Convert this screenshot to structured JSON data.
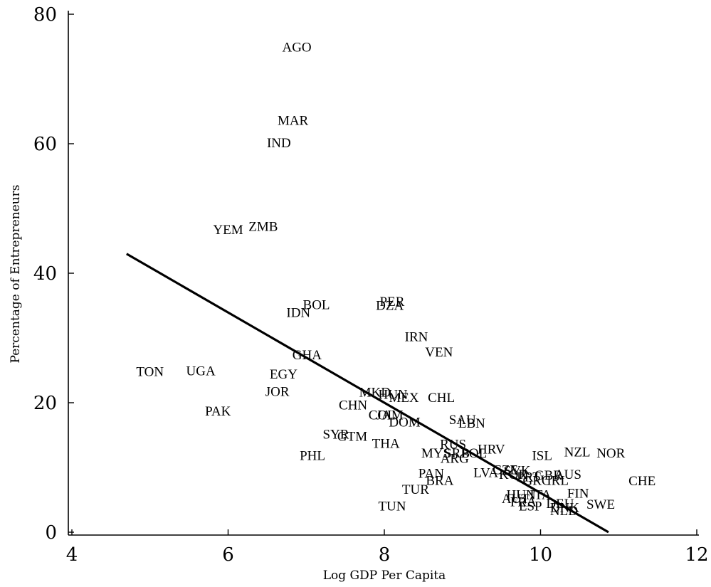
{
  "chart_data": {
    "type": "scatter",
    "title": "",
    "xlabel": "Log GDP Per Capita",
    "ylabel": "Percentage of Entrepreneurs",
    "xlim": [
      4,
      12
    ],
    "ylim": [
      0,
      80
    ],
    "xticks": [
      4,
      6,
      8,
      10,
      12
    ],
    "yticks": [
      0,
      20,
      40,
      60,
      80
    ],
    "grid": false,
    "legend": "none",
    "marker": "country code text labels",
    "fit_line": {
      "x": [
        4.7,
        10.87
      ],
      "y": [
        43.0,
        0.0
      ]
    },
    "points": [
      {
        "label": "AGO",
        "x": 6.88,
        "y": 75.0
      },
      {
        "label": "MAR",
        "x": 6.83,
        "y": 63.7
      },
      {
        "label": "IND",
        "x": 6.65,
        "y": 60.2
      },
      {
        "label": "YEM",
        "x": 6.0,
        "y": 46.8
      },
      {
        "label": "ZMB",
        "x": 6.45,
        "y": 47.3
      },
      {
        "label": "BOL",
        "x": 7.13,
        "y": 35.2
      },
      {
        "label": "IDN",
        "x": 6.9,
        "y": 34.0
      },
      {
        "label": "PER",
        "x": 8.1,
        "y": 35.7
      },
      {
        "label": "DZA",
        "x": 8.07,
        "y": 35.1
      },
      {
        "label": "IRN",
        "x": 8.41,
        "y": 30.3
      },
      {
        "label": "VEN",
        "x": 8.7,
        "y": 27.9
      },
      {
        "label": "GHA",
        "x": 7.01,
        "y": 27.5
      },
      {
        "label": "TON",
        "x": 5.0,
        "y": 24.9
      },
      {
        "label": "UGA",
        "x": 5.65,
        "y": 25.0
      },
      {
        "label": "EGY",
        "x": 6.71,
        "y": 24.5
      },
      {
        "label": "JOR",
        "x": 6.63,
        "y": 21.8
      },
      {
        "label": "PAK",
        "x": 5.87,
        "y": 18.8
      },
      {
        "label": "MKD",
        "x": 7.88,
        "y": 21.7
      },
      {
        "label": "HUN",
        "x": 8.11,
        "y": 21.4
      },
      {
        "label": "MEX",
        "x": 8.25,
        "y": 20.9
      },
      {
        "label": "CHL",
        "x": 8.73,
        "y": 20.9
      },
      {
        "label": "CHN",
        "x": 7.6,
        "y": 19.7
      },
      {
        "label": "COL",
        "x": 7.97,
        "y": 18.2
      },
      {
        "label": "JAM",
        "x": 8.07,
        "y": 18.2
      },
      {
        "label": "DOM",
        "x": 8.26,
        "y": 17.1
      },
      {
        "label": "SAU",
        "x": 9.0,
        "y": 17.5
      },
      {
        "label": "LBN",
        "x": 9.12,
        "y": 16.9
      },
      {
        "label": "SYR",
        "x": 7.38,
        "y": 15.2
      },
      {
        "label": "GTM",
        "x": 7.59,
        "y": 14.9
      },
      {
        "label": "THA",
        "x": 8.02,
        "y": 13.8
      },
      {
        "label": "RUS",
        "x": 8.88,
        "y": 13.7
      },
      {
        "label": "HRV",
        "x": 9.37,
        "y": 12.9
      },
      {
        "label": "MYS",
        "x": 8.66,
        "y": 12.3
      },
      {
        "label": "SRB",
        "x": 8.93,
        "y": 12.3
      },
      {
        "label": "POL",
        "x": 9.15,
        "y": 12.3
      },
      {
        "label": "ARG",
        "x": 8.9,
        "y": 11.5
      },
      {
        "label": "ISL",
        "x": 10.02,
        "y": 11.9
      },
      {
        "label": "NZL",
        "x": 10.47,
        "y": 12.5
      },
      {
        "label": "NOR",
        "x": 10.9,
        "y": 12.3
      },
      {
        "label": "PHL",
        "x": 7.08,
        "y": 11.9
      },
      {
        "label": "PAN",
        "x": 8.6,
        "y": 9.2
      },
      {
        "label": "LVA",
        "x": 9.3,
        "y": 9.3
      },
      {
        "label": "CZE",
        "x": 9.55,
        "y": 9.7
      },
      {
        "label": "SVK",
        "x": 9.7,
        "y": 9.6
      },
      {
        "label": "KOR",
        "x": 9.65,
        "y": 9.0
      },
      {
        "label": "PRT",
        "x": 9.85,
        "y": 8.6
      },
      {
        "label": "GBR",
        "x": 10.1,
        "y": 8.9
      },
      {
        "label": "AUS",
        "x": 10.35,
        "y": 9.0
      },
      {
        "label": "BRA",
        "x": 8.71,
        "y": 8.1
      },
      {
        "label": "GRC",
        "x": 9.95,
        "y": 8.1
      },
      {
        "label": "IRL",
        "x": 10.22,
        "y": 8.1
      },
      {
        "label": "CHE",
        "x": 11.3,
        "y": 8.0
      },
      {
        "label": "TUR",
        "x": 8.4,
        "y": 6.7
      },
      {
        "label": "FIN",
        "x": 10.48,
        "y": 6.1
      },
      {
        "label": "HUN",
        "x": 9.75,
        "y": 5.9
      },
      {
        "label": "ITA",
        "x": 10.0,
        "y": 5.9
      },
      {
        "label": "AUT",
        "x": 9.68,
        "y": 5.3
      },
      {
        "label": "FRA",
        "x": 9.78,
        "y": 4.8
      },
      {
        "label": "ESP",
        "x": 9.87,
        "y": 4.1
      },
      {
        "label": "DNK",
        "x": 10.31,
        "y": 3.9
      },
      {
        "label": "DEU",
        "x": 10.25,
        "y": 4.5
      },
      {
        "label": "NLD",
        "x": 10.3,
        "y": 3.4
      },
      {
        "label": "SWE",
        "x": 10.77,
        "y": 4.4
      },
      {
        "label": "TUN",
        "x": 8.1,
        "y": 4.1
      }
    ]
  }
}
